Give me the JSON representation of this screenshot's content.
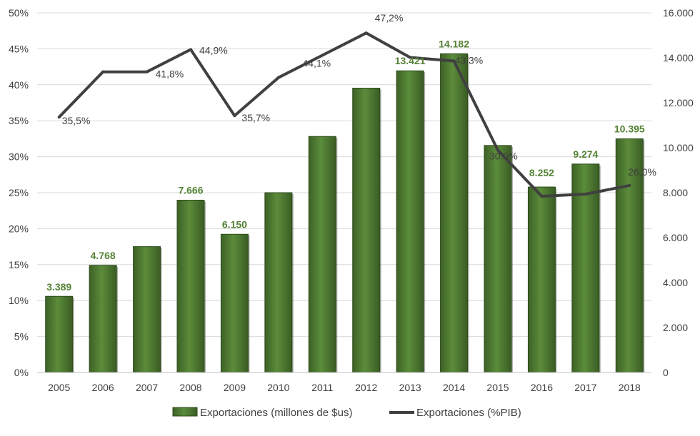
{
  "chart_data": {
    "type": "bar",
    "categories": [
      "2005",
      "2006",
      "2007",
      "2008",
      "2009",
      "2010",
      "2011",
      "2012",
      "2013",
      "2014",
      "2015",
      "2016",
      "2017",
      "2018"
    ],
    "series": [
      {
        "name": "Exportaciones (millones de $us)",
        "type": "bar",
        "axis": "right",
        "values": [
          3389,
          4768,
          5600,
          7666,
          6150,
          8000,
          10500,
          12650,
          13421,
          14182,
          10100,
          8252,
          9274,
          10395
        ],
        "data_labels": [
          "3.389",
          "4.768",
          "",
          "7.666",
          "6.150",
          "",
          "",
          "",
          "13.421",
          "14.182",
          "",
          "8.252",
          "9.274",
          "10.395"
        ]
      },
      {
        "name": "Exportaciones (%PIB)",
        "type": "line",
        "axis": "left",
        "values": [
          35.5,
          41.8,
          41.8,
          44.9,
          35.7,
          41.0,
          44.1,
          47.2,
          43.8,
          43.3,
          30.9,
          24.5,
          24.8,
          26.0
        ],
        "data_labels": [
          "35,5%",
          "",
          "41,8%",
          "44,9%",
          "35,7%",
          "",
          "44,1%",
          "47,2%",
          "",
          "43,3%",
          "30,9%",
          "",
          "",
          "26,0%"
        ]
      }
    ],
    "y_left": {
      "min": 0,
      "max": 50,
      "ticks": [
        0,
        5,
        10,
        15,
        20,
        25,
        30,
        35,
        40,
        45,
        50
      ],
      "tick_labels": [
        "0%",
        "5%",
        "10%",
        "15%",
        "20%",
        "25%",
        "30%",
        "35%",
        "40%",
        "45%",
        "50%"
      ]
    },
    "y_right": {
      "min": 0,
      "max": 16000,
      "ticks": [
        0,
        2000,
        4000,
        6000,
        8000,
        10000,
        12000,
        14000,
        16000
      ],
      "tick_labels": [
        "0",
        "2.000",
        "4.000",
        "6.000",
        "8.000",
        "10.000",
        "12.000",
        "14.000",
        "16.000"
      ]
    },
    "grid": true,
    "legend": "bottom",
    "colors": {
      "bar": "#548235",
      "bar_label": "#548235",
      "line": "#404040",
      "grid": "#d9d9d9"
    }
  }
}
